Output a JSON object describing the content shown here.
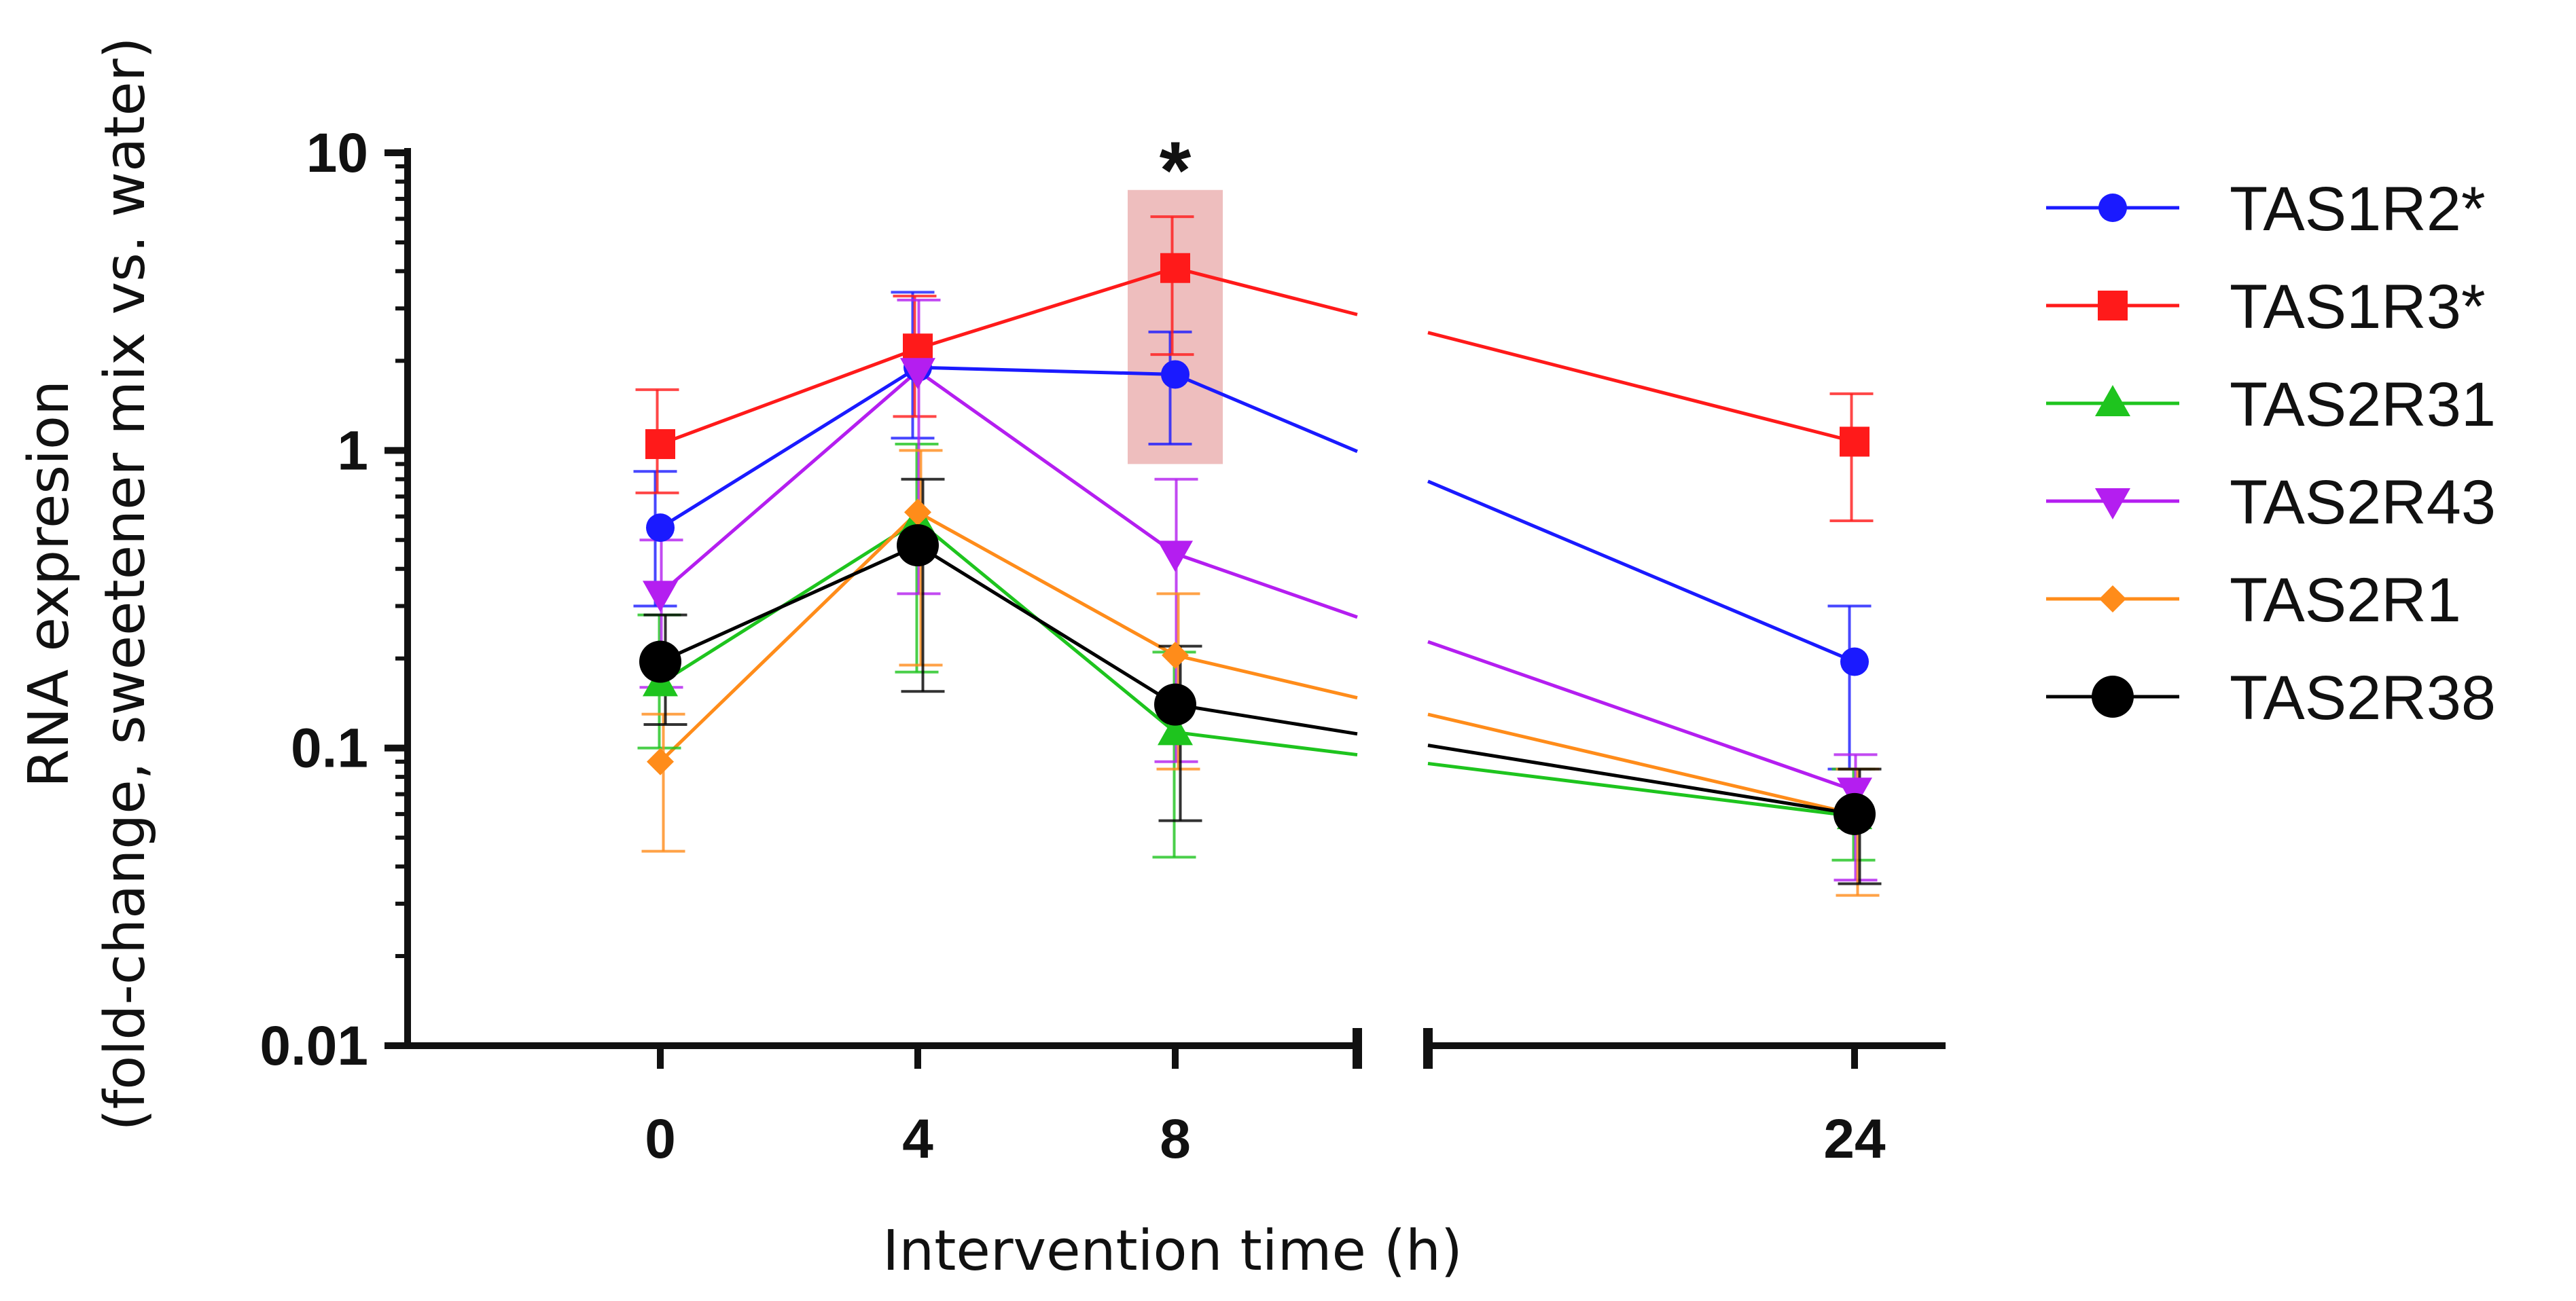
{
  "chart_data": {
    "type": "line",
    "title": "",
    "xlabel": "Intervention time (h)",
    "ylabel_line1": "RNA expresion",
    "ylabel_line2": "(fold-change, sweetener mix vs. water)",
    "yscale": "log",
    "ylim": [
      0.01,
      10
    ],
    "y_ticks": [
      {
        "value": 0.01,
        "label": "0.01"
      },
      {
        "value": 0.1,
        "label": "0.1"
      },
      {
        "value": 1,
        "label": "1"
      },
      {
        "value": 10,
        "label": "10"
      }
    ],
    "x_ticks": [
      {
        "value": 0,
        "label": "0"
      },
      {
        "value": 4,
        "label": "4"
      },
      {
        "value": 8,
        "label": "8"
      },
      {
        "value": 24,
        "label": "24"
      }
    ],
    "x_axis_break": "between 8 and 24",
    "x": [
      0,
      4,
      8,
      24
    ],
    "series": [
      {
        "name": "TAS1R2*",
        "color": "#1a1aff",
        "marker": "circle",
        "values": [
          0.55,
          1.9,
          1.8,
          0.195
        ],
        "err_high": [
          0.85,
          3.4,
          2.5,
          0.3
        ],
        "err_low": [
          0.3,
          1.1,
          1.05,
          0.085
        ]
      },
      {
        "name": "TAS1R3*",
        "color": "#ff1a1a",
        "marker": "square",
        "values": [
          1.05,
          2.2,
          4.1,
          1.07
        ],
        "err_high": [
          1.6,
          3.3,
          6.1,
          1.55
        ],
        "err_low": [
          0.72,
          1.3,
          2.1,
          0.58
        ]
      },
      {
        "name": "TAS2R31",
        "color": "#1ec41e",
        "marker": "triangle-up",
        "values": [
          0.165,
          0.58,
          0.113,
          0.059
        ],
        "err_high": [
          0.28,
          1.05,
          0.21,
          0.085
        ],
        "err_low": [
          0.1,
          0.18,
          0.043,
          0.042
        ]
      },
      {
        "name": "TAS2R43",
        "color": "#b41ef0",
        "marker": "triangle-down",
        "values": [
          0.33,
          1.85,
          0.45,
          0.072
        ],
        "err_high": [
          0.5,
          3.2,
          0.8,
          0.095
        ],
        "err_low": [
          0.16,
          0.33,
          0.09,
          0.036
        ]
      },
      {
        "name": "TAS2R1",
        "color": "#ff8c1a",
        "marker": "diamond",
        "values": [
          0.09,
          0.62,
          0.205,
          0.06
        ],
        "err_high": [
          0.13,
          1.0,
          0.33,
          0.085
        ],
        "err_low": [
          0.045,
          0.19,
          0.085,
          0.032
        ]
      },
      {
        "name": "TAS2R38",
        "color": "#000000",
        "marker": "circle-large",
        "values": [
          0.195,
          0.48,
          0.14,
          0.06
        ],
        "err_high": [
          0.28,
          0.8,
          0.22,
          0.085
        ],
        "err_low": [
          0.12,
          0.155,
          0.057,
          0.035
        ]
      }
    ],
    "annotations": [
      {
        "text": "*",
        "x": 8,
        "note": "significant at 8 h"
      }
    ],
    "highlight": {
      "x": 8,
      "y_range": [
        0.9,
        7.5
      ],
      "color": "#e8a8a8"
    },
    "legend_position": "right"
  }
}
